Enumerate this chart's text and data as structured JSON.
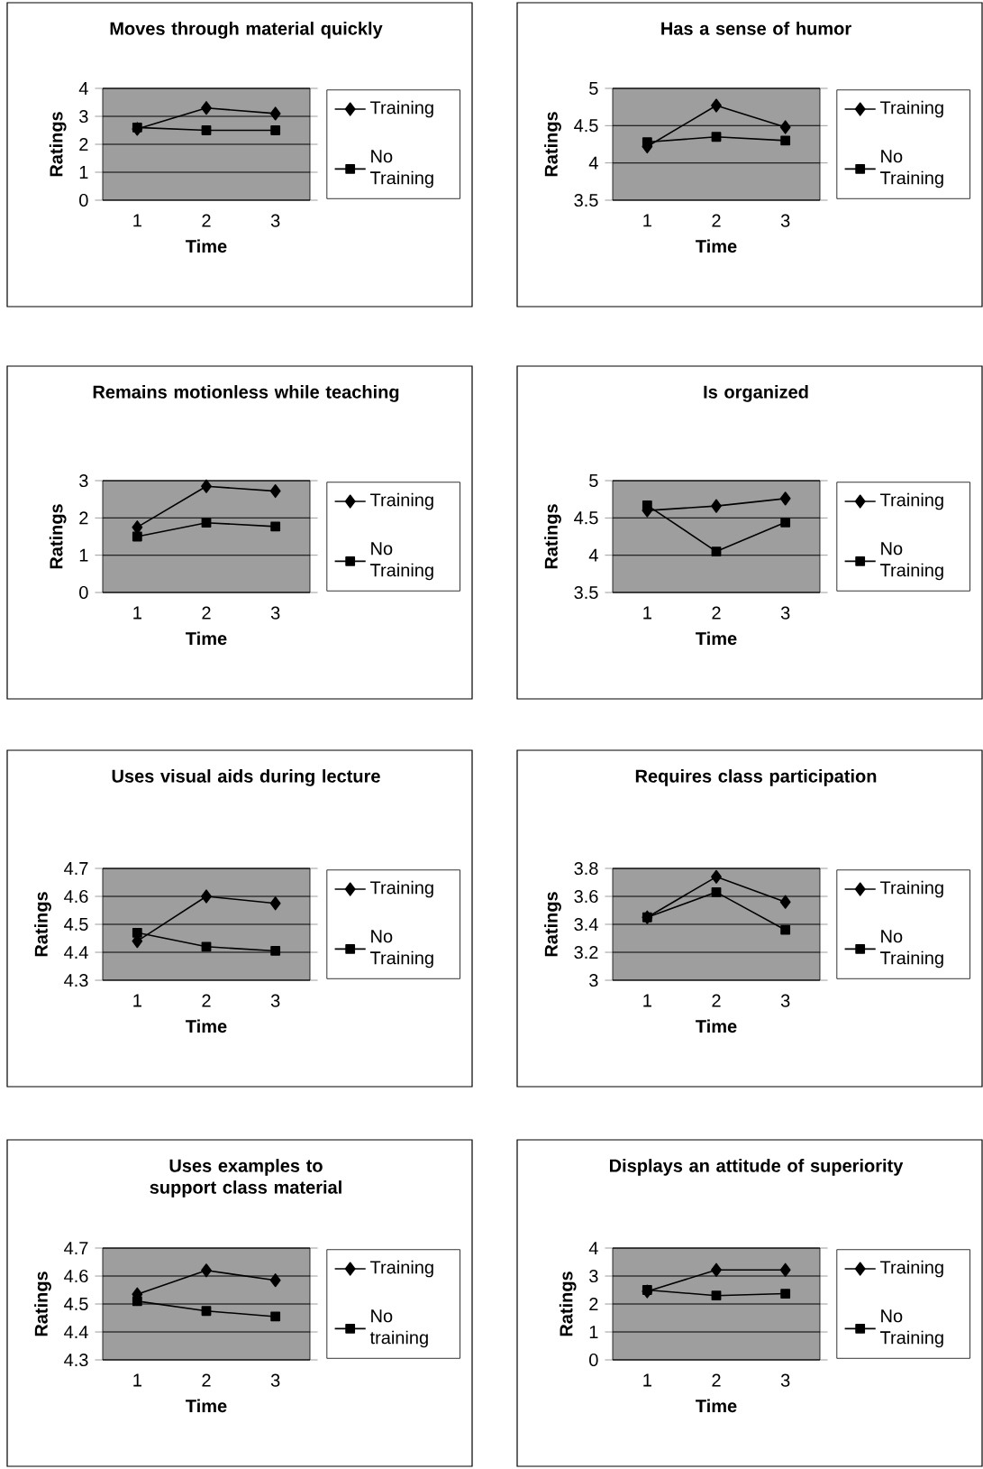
{
  "chart_data": [
    {
      "type": "line",
      "title": "Moves through material quickly",
      "xlabel": "Time",
      "ylabel": "Ratings",
      "categories": [
        "1",
        "2",
        "3"
      ],
      "ylim": [
        0,
        4
      ],
      "yticks": [
        0,
        1,
        2,
        3,
        4
      ],
      "grid": "y",
      "legend": "right",
      "series": [
        {
          "name": "Training",
          "color": "#000000",
          "marker": "diamond",
          "values": [
            2.55,
            3.3,
            3.1
          ]
        },
        {
          "name": "No Training",
          "color": "#000000",
          "marker": "square",
          "values": [
            2.6,
            2.5,
            2.5
          ]
        }
      ]
    },
    {
      "type": "line",
      "title": "Has a sense of humor",
      "xlabel": "Time",
      "ylabel": "Ratings",
      "categories": [
        "1",
        "2",
        "3"
      ],
      "ylim": [
        3.5,
        5
      ],
      "yticks": [
        3.5,
        4,
        4.5,
        5
      ],
      "grid": "y",
      "legend": "right",
      "series": [
        {
          "name": "Training",
          "color": "#000000",
          "marker": "diamond",
          "values": [
            4.22,
            4.77,
            4.48
          ]
        },
        {
          "name": "No Training",
          "color": "#000000",
          "marker": "square",
          "values": [
            4.28,
            4.35,
            4.3
          ]
        }
      ]
    },
    {
      "type": "line",
      "title": "Remains motionless while teaching",
      "xlabel": "Time",
      "ylabel": "Ratings",
      "categories": [
        "1",
        "2",
        "3"
      ],
      "ylim": [
        0,
        3
      ],
      "yticks": [
        0,
        1,
        2,
        3
      ],
      "grid": "y",
      "legend": "right",
      "series": [
        {
          "name": "Training",
          "color": "#000000",
          "marker": "diamond",
          "values": [
            1.75,
            2.85,
            2.72
          ]
        },
        {
          "name": "No Training",
          "color": "#000000",
          "marker": "square",
          "values": [
            1.5,
            1.87,
            1.77
          ]
        }
      ]
    },
    {
      "type": "line",
      "title": "Is organized",
      "xlabel": "Time",
      "ylabel": "Ratings",
      "categories": [
        "1",
        "2",
        "3"
      ],
      "ylim": [
        3.5,
        5
      ],
      "yticks": [
        3.5,
        4,
        4.5,
        5
      ],
      "grid": "y",
      "legend": "right",
      "series": [
        {
          "name": "Training",
          "color": "#000000",
          "marker": "diamond",
          "values": [
            4.6,
            4.66,
            4.76
          ]
        },
        {
          "name": "No Training",
          "color": "#000000",
          "marker": "square",
          "values": [
            4.67,
            4.05,
            4.44
          ]
        }
      ]
    },
    {
      "type": "line",
      "title": "Uses visual aids during lecture",
      "xlabel": "Time",
      "ylabel": "Ratings",
      "categories": [
        "1",
        "2",
        "3"
      ],
      "ylim": [
        4.3,
        4.7
      ],
      "yticks": [
        4.3,
        4.4,
        4.5,
        4.6,
        4.7
      ],
      "grid": "y",
      "legend": "right",
      "series": [
        {
          "name": "Training",
          "color": "#000000",
          "marker": "diamond",
          "values": [
            4.44,
            4.6,
            4.575
          ]
        },
        {
          "name": "No Training",
          "color": "#000000",
          "marker": "square",
          "values": [
            4.47,
            4.42,
            4.405
          ]
        }
      ]
    },
    {
      "type": "line",
      "title": "Requires class participation",
      "xlabel": "Time",
      "ylabel": "Ratings",
      "categories": [
        "1",
        "2",
        "3"
      ],
      "ylim": [
        3,
        3.8
      ],
      "yticks": [
        3,
        3.2,
        3.4,
        3.6,
        3.8
      ],
      "grid": "y",
      "legend": "right",
      "series": [
        {
          "name": "Training",
          "color": "#000000",
          "marker": "diamond",
          "values": [
            3.45,
            3.74,
            3.56
          ]
        },
        {
          "name": "No Training",
          "color": "#000000",
          "marker": "square",
          "values": [
            3.45,
            3.63,
            3.36
          ]
        }
      ]
    },
    {
      "type": "line",
      "title": "Uses examples to support class material",
      "xlabel": "Time",
      "ylabel": "Ratings",
      "categories": [
        "1",
        "2",
        "3"
      ],
      "ylim": [
        4.3,
        4.7
      ],
      "yticks": [
        4.3,
        4.4,
        4.5,
        4.6,
        4.7
      ],
      "grid": "y",
      "legend": "right",
      "series": [
        {
          "name": "Training",
          "color": "#000000",
          "marker": "diamond",
          "values": [
            4.535,
            4.62,
            4.585
          ]
        },
        {
          "name": "No training",
          "color": "#000000",
          "marker": "square",
          "values": [
            4.51,
            4.475,
            4.455
          ]
        }
      ]
    },
    {
      "type": "line",
      "title": "Displays an attitude of superiority",
      "xlabel": "Time",
      "ylabel": "Ratings",
      "categories": [
        "1",
        "2",
        "3"
      ],
      "ylim": [
        0,
        4
      ],
      "yticks": [
        0,
        1,
        2,
        3,
        4
      ],
      "grid": "y",
      "legend": "right",
      "series": [
        {
          "name": "Training",
          "color": "#000000",
          "marker": "diamond",
          "values": [
            2.45,
            3.22,
            3.22
          ]
        },
        {
          "name": "No Training",
          "color": "#000000",
          "marker": "square",
          "values": [
            2.5,
            2.3,
            2.37
          ]
        }
      ]
    }
  ]
}
